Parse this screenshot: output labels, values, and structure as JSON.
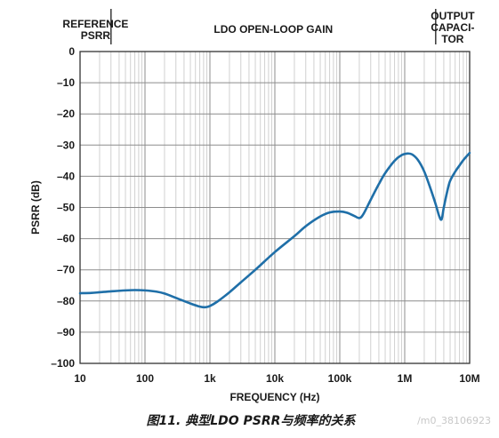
{
  "chart_data": {
    "type": "line",
    "x_scale": "log",
    "xlabel": "FREQUENCY (Hz)",
    "ylabel": "PSRR (dB)",
    "xlim": [
      10,
      10000000
    ],
    "ylim": [
      -100,
      0
    ],
    "x_ticks": [
      {
        "value": 10,
        "label": "10"
      },
      {
        "value": 100,
        "label": "100"
      },
      {
        "value": 1000,
        "label": "1k"
      },
      {
        "value": 10000,
        "label": "10k"
      },
      {
        "value": 100000,
        "label": "100k"
      },
      {
        "value": 1000000,
        "label": "1M"
      },
      {
        "value": 10000000,
        "label": "10M"
      }
    ],
    "y_ticks": [
      {
        "value": 0,
        "label": "0"
      },
      {
        "value": -10,
        "label": "–10"
      },
      {
        "value": -20,
        "label": "–20"
      },
      {
        "value": -30,
        "label": "–30"
      },
      {
        "value": -40,
        "label": "–40"
      },
      {
        "value": -50,
        "label": "–50"
      },
      {
        "value": -60,
        "label": "–60"
      },
      {
        "value": -70,
        "label": "–70"
      },
      {
        "value": -80,
        "label": "–80"
      },
      {
        "value": -90,
        "label": "–90"
      },
      {
        "value": -100,
        "label": "–100"
      }
    ],
    "grid": true,
    "regions": [
      {
        "label_lines": [
          "REFERENCE",
          "PSRR"
        ],
        "x_start": 10,
        "x_end": 30
      },
      {
        "label_lines": [
          "LDO OPEN-LOOP GAIN"
        ],
        "x_start": 30,
        "x_end": 3000000
      },
      {
        "label_lines": [
          "OUTPUT",
          "CAPACI-",
          "TOR"
        ],
        "x_start": 3000000,
        "x_end": 10000000
      }
    ],
    "series": [
      {
        "color": "#1f6fa8",
        "points": [
          [
            10,
            -77.5
          ],
          [
            15,
            -77.4
          ],
          [
            20,
            -77.2
          ],
          [
            30,
            -76.9
          ],
          [
            50,
            -76.6
          ],
          [
            70,
            -76.5
          ],
          [
            100,
            -76.6
          ],
          [
            150,
            -77.0
          ],
          [
            200,
            -77.6
          ],
          [
            300,
            -79.0
          ],
          [
            500,
            -80.8
          ],
          [
            700,
            -81.8
          ],
          [
            850,
            -82.0
          ],
          [
            1000,
            -81.6
          ],
          [
            1300,
            -80.2
          ],
          [
            2000,
            -77.2
          ],
          [
            3000,
            -74.0
          ],
          [
            5000,
            -70.0
          ],
          [
            10000,
            -64.3
          ],
          [
            20000,
            -59.2
          ],
          [
            30000,
            -56.0
          ],
          [
            50000,
            -52.9
          ],
          [
            70000,
            -51.6
          ],
          [
            100000,
            -51.3
          ],
          [
            130000,
            -51.7
          ],
          [
            170000,
            -52.8
          ],
          [
            200000,
            -53.4
          ],
          [
            230000,
            -52.2
          ],
          [
            300000,
            -47.5
          ],
          [
            400000,
            -42.5
          ],
          [
            500000,
            -39.0
          ],
          [
            700000,
            -35.0
          ],
          [
            900000,
            -33.2
          ],
          [
            1100000,
            -32.7
          ],
          [
            1300000,
            -33.0
          ],
          [
            1600000,
            -34.8
          ],
          [
            2000000,
            -38.5
          ],
          [
            2500000,
            -44.0
          ],
          [
            3000000,
            -49.0
          ],
          [
            3400000,
            -52.8
          ],
          [
            3700000,
            -53.8
          ],
          [
            4000000,
            -50.0
          ],
          [
            4500000,
            -45.0
          ],
          [
            5000000,
            -41.5
          ],
          [
            6000000,
            -38.5
          ],
          [
            7000000,
            -36.5
          ],
          [
            8000000,
            -34.8
          ],
          [
            10000000,
            -32.5
          ]
        ]
      }
    ]
  },
  "caption": "图11. 典型LDO PSRR与频率的关系",
  "watermark": "/m0_38106923"
}
